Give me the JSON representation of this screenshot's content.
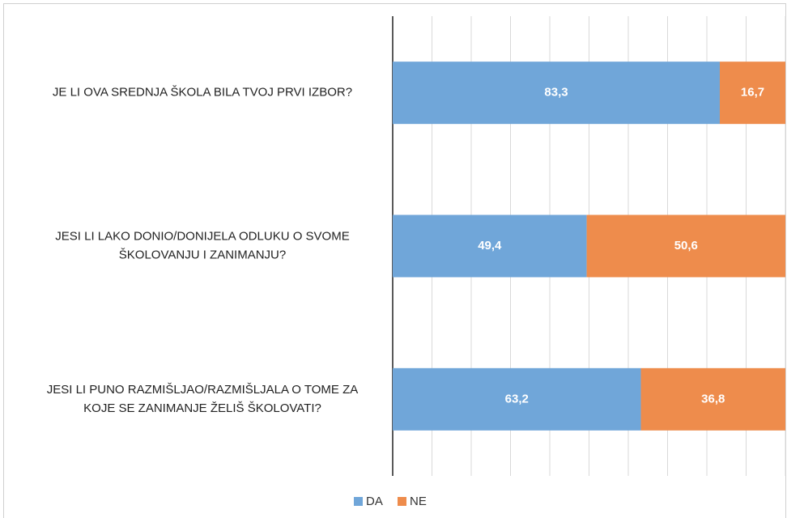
{
  "chart_data": {
    "type": "stacked_barh",
    "categories": [
      "JE LI OVA SREDNJA ŠKOLA BILA TVOJ PRVI IZBOR?",
      "JESI LI LAKO DONIO/DONIJELA ODLUKU O SVOME\nŠKOLOVANJU I ZANIMANJU?",
      "JESI LI PUNO RAZMIŠLJAO/RAZMIŠLJALA  O TOME ZA\nKOJE SE ZANIMANJE ŽELIŠ ŠKOLOVATI?"
    ],
    "series": [
      {
        "name": "DA",
        "color": "#70a6d9",
        "values": [
          83.3,
          49.4,
          63.2
        ],
        "value_labels": [
          "83,3",
          "49,4",
          "63,2"
        ]
      },
      {
        "name": "NE",
        "color": "#ee8c4c",
        "values": [
          16.7,
          50.6,
          36.8
        ],
        "value_labels": [
          "16,7",
          "50,6",
          "36,8"
        ]
      }
    ],
    "xlim": [
      0,
      100
    ],
    "xticks": [
      0,
      10,
      20,
      30,
      40,
      50,
      60,
      70,
      80,
      90,
      100
    ],
    "grid": true,
    "legend": "bottom"
  }
}
